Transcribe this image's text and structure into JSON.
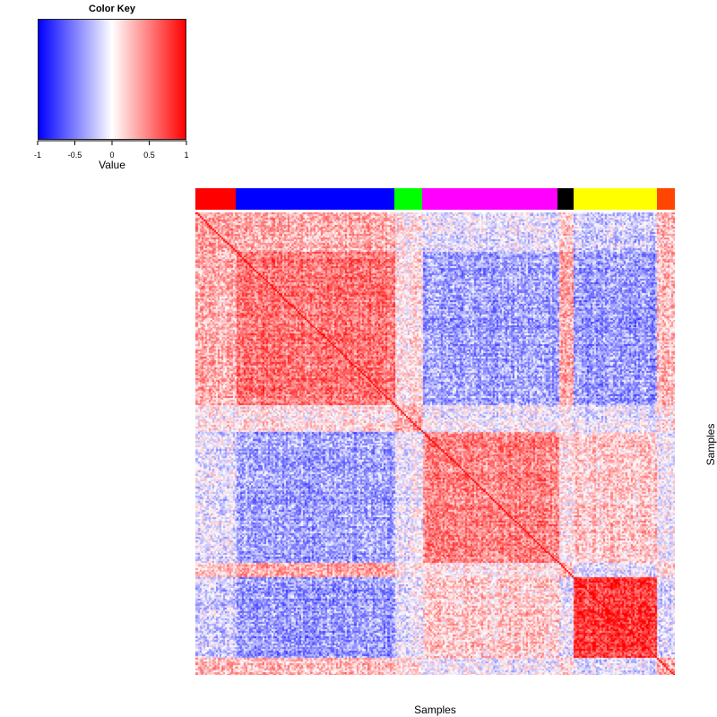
{
  "chart_data": {
    "type": "heatmap",
    "title": "",
    "xlabel": "Samples",
    "ylabel": "Samples",
    "color_key": {
      "title": "Color Key",
      "xlabel": "Value",
      "range": [
        -1,
        1
      ],
      "ticks": [
        -1,
        -0.5,
        0,
        0.5,
        1
      ],
      "tick_labels": [
        "-1",
        "-0.5",
        "0",
        "0.5",
        "1"
      ],
      "low_color": "#0000ff",
      "mid_color": "#ffffff",
      "high_color": "#ff0000"
    },
    "groups": [
      {
        "color": "#ff0000",
        "fraction": 0.085
      },
      {
        "color": "#0000ff",
        "fraction": 0.33
      },
      {
        "color": "#00ff00",
        "fraction": 0.057
      },
      {
        "color": "#ff00ff",
        "fraction": 0.284
      },
      {
        "color": "#000000",
        "fraction": 0.032
      },
      {
        "color": "#ffff00",
        "fraction": 0.175
      },
      {
        "color": "#ff4500",
        "fraction": 0.037
      }
    ],
    "block_correlations": [
      [
        0.35,
        0.3,
        0.05,
        -0.1,
        0.2,
        -0.2,
        0.25
      ],
      [
        0.3,
        0.55,
        0.1,
        -0.35,
        0.35,
        -0.4,
        0.25
      ],
      [
        0.05,
        0.1,
        0.3,
        -0.05,
        0.05,
        -0.1,
        0.1
      ],
      [
        -0.1,
        -0.35,
        -0.05,
        0.5,
        0.1,
        0.2,
        -0.05
      ],
      [
        0.2,
        0.35,
        0.05,
        0.1,
        0.3,
        -0.1,
        0.15
      ],
      [
        -0.2,
        -0.4,
        -0.1,
        0.2,
        -0.1,
        0.75,
        -0.15
      ],
      [
        0.25,
        0.25,
        0.1,
        -0.05,
        0.15,
        -0.15,
        0.3
      ]
    ],
    "diagonal_value": 1
  }
}
